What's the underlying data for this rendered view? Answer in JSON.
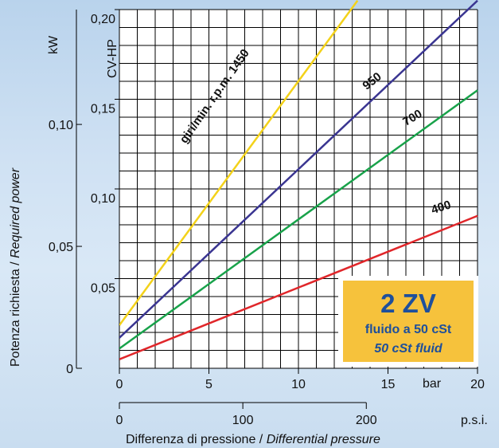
{
  "chart_data": {
    "type": "line",
    "title": "",
    "xlabel": "Differenza di pressione / ",
    "xlabel_italic": "Differential pressure",
    "ylabel": "Potenza richiesta / ",
    "ylabel_italic": "Required power",
    "x_unit_bar": "bar",
    "x_unit_psi": "p.s.i.",
    "unit_kw": "kW",
    "unit_cv": "CV-HP",
    "xlim": [
      0,
      20
    ],
    "ylim_cv": [
      0,
      0.2
    ],
    "x_ticks_bar": [
      "0",
      "5",
      "10",
      "15",
      "20"
    ],
    "x_ticks_psi": [
      "0",
      "100",
      "200"
    ],
    "y_ticks_cv": [
      "0,05",
      "0,10",
      "0,15",
      "0,20"
    ],
    "y_ticks_kw": [
      "0",
      "0,05",
      "0,10"
    ],
    "series": [
      {
        "name": "giri/min. r.p.m. 1450",
        "color": "#f3d21a",
        "x": [
          0,
          13.3
        ],
        "y": [
          0.024,
          0.205
        ]
      },
      {
        "name": "950",
        "color": "#3a3591",
        "x": [
          0,
          20
        ],
        "y": [
          0.017,
          0.205
        ]
      },
      {
        "name": "700",
        "color": "#18a24a",
        "x": [
          0,
          20
        ],
        "y": [
          0.011,
          0.155
        ]
      },
      {
        "name": "400",
        "color": "#e0262a",
        "x": [
          0,
          20
        ],
        "y": [
          0.005,
          0.085
        ]
      }
    ],
    "grid": true,
    "legend": "none",
    "annotation": {
      "title": "2 ZV",
      "line1": "fluido a 50 cSt",
      "line2": "50 cSt fluid",
      "bg": "#f6c23c",
      "text_color": "#1d4f9c"
    }
  }
}
